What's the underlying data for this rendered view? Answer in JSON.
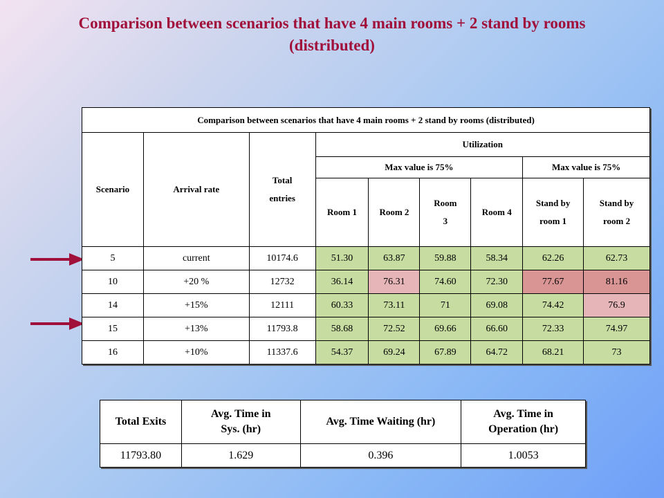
{
  "title": {
    "line1": "Comparison between scenarios that have 4 main rooms + 2 stand by rooms",
    "line2": "(distributed)"
  },
  "main_table": {
    "caption": "Comparison between scenarios that have 4 main rooms + 2 stand by rooms (distributed)",
    "headers": {
      "scenario": "Scenario",
      "arrival_rate": "Arrival rate",
      "total_entries_1": "Total",
      "total_entries_2": "entries",
      "utilization": "Utilization",
      "max_value_left": "Max value is 75%",
      "max_value_right": "Max value is 75%",
      "room1": "Room 1",
      "room2": "Room 2",
      "room3_1": "Room",
      "room3_2": "3",
      "room4": "Room 4",
      "standby1_1": "Stand by",
      "standby1_2": "room 1",
      "standby2_1": "Stand by",
      "standby2_2": "room 2"
    },
    "rows": [
      {
        "scenario": "5",
        "arrival": "current",
        "entries": "10174.6",
        "room1": "51.30",
        "room2": "63.87",
        "room3": "59.88",
        "room4": "58.34",
        "sb1": "62.26",
        "sb2": "62.73"
      },
      {
        "scenario": "10",
        "arrival": "+20 %",
        "entries": "12732",
        "room1": "36.14",
        "room2": "76.31",
        "room3": "74.60",
        "room4": "72.30",
        "sb1": "77.67",
        "sb2": "81.16"
      },
      {
        "scenario": "14",
        "arrival": "+15%",
        "entries": "12111",
        "room1": "60.33",
        "room2": "73.11",
        "room3": "71",
        "room4": "69.08",
        "sb1": "74.42",
        "sb2": "76.9"
      },
      {
        "scenario": "15",
        "arrival": "+13%",
        "entries": "11793.8",
        "room1": "58.68",
        "room2": "72.52",
        "room3": "69.66",
        "room4": "66.60",
        "sb1": "72.33",
        "sb2": "74.97"
      },
      {
        "scenario": "16",
        "arrival": "+10%",
        "entries": "11337.6",
        "room1": "54.37",
        "room2": "69.24",
        "room3": "67.89",
        "room4": "64.72",
        "sb1": "68.21",
        "sb2": "73"
      }
    ]
  },
  "summary_table": {
    "headers": {
      "total_exits": "Total Exits",
      "avg_sys_1": "Avg. Time in",
      "avg_sys_2": "Sys. (hr)",
      "avg_wait": "Avg. Time Waiting (hr)",
      "avg_op_1": "Avg. Time in",
      "avg_op_2": "Operation (hr)"
    },
    "values": {
      "total_exits": "11793.80",
      "avg_sys": "1.629",
      "avg_wait": "0.396",
      "avg_op": "1.0053"
    }
  },
  "colors": {
    "title": "#a0103a",
    "arrow": "#a0103a",
    "ok_cell": "#c6dca0",
    "over_cell": "#d99594",
    "near_cell": "#e6b5b8"
  }
}
